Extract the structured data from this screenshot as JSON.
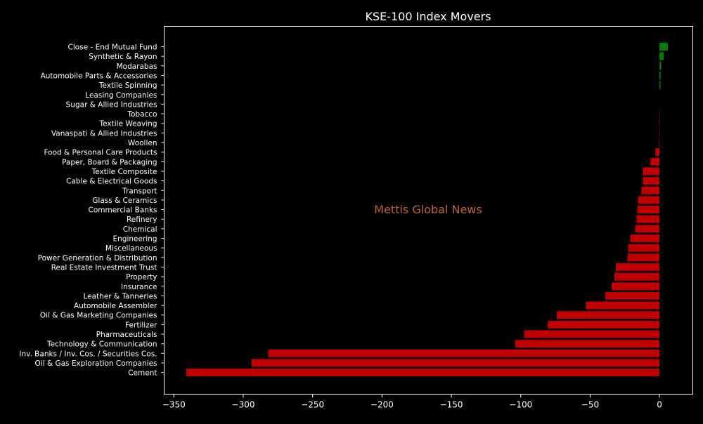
{
  "chart_data": {
    "type": "bar",
    "orientation": "horizontal",
    "title": "KSE-100 Index Movers",
    "watermark": "Mettis Global News",
    "xlabel": "",
    "ylabel": "",
    "xlim": [
      -357,
      24
    ],
    "xticks": [
      -350,
      -300,
      -250,
      -200,
      -150,
      -100,
      -50,
      0
    ],
    "xtick_labels": [
      "−350",
      "−300",
      "−250",
      "−200",
      "−150",
      "−100",
      "−50",
      "0"
    ],
    "grid": false,
    "legend": "none",
    "categories": [
      "Close - End Mutual Fund",
      "Synthetic & Rayon",
      "Modarabas",
      "Automobile Parts & Accessories",
      "Textile Spinning",
      "Leasing Companies",
      "Sugar & Allied Industries",
      "Tobacco",
      "Textile Weaving",
      "Vanaspati & Allied Industries",
      "Woollen",
      "Food & Personal Care Products",
      "Paper, Board & Packaging",
      "Textile Composite",
      "Cable & Electrical Goods",
      "Transport",
      "Glass & Ceramics",
      "Commercial Banks",
      "Refinery",
      "Chemical",
      "Engineering",
      "Miscellaneous",
      "Power Generation & Distribution",
      "Real Estate Investment Trust",
      "Property",
      "Insurance",
      "Leather & Tanneries",
      "Automobile Assembler",
      "Oil & Gas Marketing Companies",
      "Fertilizer",
      "Pharmaceuticals",
      "Technology & Communication",
      "Inv. Banks / Inv. Cos. / Securities Cos.",
      "Oil & Gas Exploration Companies",
      "Cement"
    ],
    "values": [
      6,
      3,
      1.2,
      0.8,
      0.7,
      0,
      0,
      -0.3,
      -0.3,
      -0.3,
      -0.4,
      -3,
      -6.5,
      -12,
      -12,
      -13,
      -15.5,
      -16,
      -16.5,
      -17.5,
      -21,
      -22.5,
      -23,
      -31.5,
      -32.5,
      -34.5,
      -39,
      -53,
      -74,
      -80.5,
      -97.5,
      -104,
      -282,
      -294,
      -341
    ],
    "colors": {
      "positive": "#008000",
      "negative": "#c00000"
    }
  },
  "colors": {
    "background": "#000000",
    "axes": "#ffffff",
    "text": "#ffffff",
    "watermark": "#c0642a"
  }
}
